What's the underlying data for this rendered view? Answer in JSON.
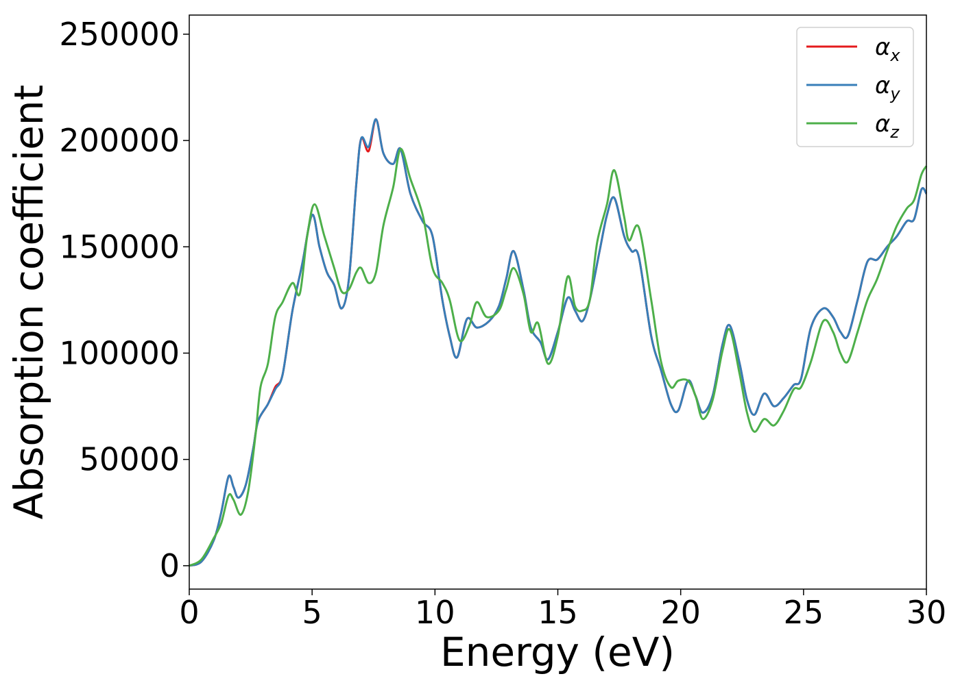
{
  "chart_data": {
    "type": "line",
    "xlabel": "Energy (eV)",
    "ylabel": "Absorption coefficient",
    "xlim": [
      0,
      30
    ],
    "ylim": [
      -11000,
      259000
    ],
    "xticks": [
      0,
      5,
      10,
      15,
      20,
      25,
      30
    ],
    "xtick_labels": [
      "0",
      "5",
      "10",
      "15",
      "20",
      "25",
      "30"
    ],
    "yticks": [
      0,
      50000,
      100000,
      150000,
      200000,
      250000
    ],
    "ytick_labels": [
      "0",
      "50000",
      "100000",
      "150000",
      "200000",
      "250000"
    ],
    "grid": false,
    "legend_position": "top-right",
    "series": [
      {
        "name": "α",
        "subscript": "x",
        "color": "#e41a1c",
        "points": [
          [
            0,
            0
          ],
          [
            0.5,
            2000
          ],
          [
            1.0,
            12000
          ],
          [
            1.3,
            25000
          ],
          [
            1.6,
            42000
          ],
          [
            1.8,
            37000
          ],
          [
            2.0,
            32000
          ],
          [
            2.3,
            38000
          ],
          [
            2.6,
            55000
          ],
          [
            2.8,
            68000
          ],
          [
            3.2,
            76000
          ],
          [
            3.5,
            84000
          ],
          [
            3.8,
            90000
          ],
          [
            4.2,
            120000
          ],
          [
            4.6,
            142000
          ],
          [
            5.0,
            165000
          ],
          [
            5.3,
            150000
          ],
          [
            5.6,
            138000
          ],
          [
            5.9,
            132000
          ],
          [
            6.2,
            121000
          ],
          [
            6.5,
            135000
          ],
          [
            6.8,
            180000
          ],
          [
            7.0,
            201000
          ],
          [
            7.3,
            195000
          ],
          [
            7.6,
            210000
          ],
          [
            7.9,
            194000
          ],
          [
            8.3,
            189000
          ],
          [
            8.6,
            196000
          ],
          [
            9.0,
            175000
          ],
          [
            9.5,
            162000
          ],
          [
            9.9,
            155000
          ],
          [
            10.3,
            125000
          ],
          [
            10.6,
            108000
          ],
          [
            10.9,
            98000
          ],
          [
            11.3,
            116000
          ],
          [
            11.7,
            112000
          ],
          [
            12.2,
            115000
          ],
          [
            12.6,
            122000
          ],
          [
            12.9,
            135000
          ],
          [
            13.2,
            148000
          ],
          [
            13.6,
            130000
          ],
          [
            13.9,
            112000
          ],
          [
            14.3,
            105000
          ],
          [
            14.6,
            97000
          ],
          [
            15.0,
            110000
          ],
          [
            15.4,
            126000
          ],
          [
            15.7,
            120000
          ],
          [
            16.0,
            115000
          ],
          [
            16.3,
            125000
          ],
          [
            16.7,
            148000
          ],
          [
            17.0,
            165000
          ],
          [
            17.3,
            173000
          ],
          [
            17.7,
            155000
          ],
          [
            18.0,
            148000
          ],
          [
            18.3,
            145000
          ],
          [
            18.8,
            108000
          ],
          [
            19.2,
            92000
          ],
          [
            19.6,
            76000
          ],
          [
            19.9,
            73000
          ],
          [
            20.3,
            87000
          ],
          [
            20.6,
            80000
          ],
          [
            20.9,
            72000
          ],
          [
            21.3,
            80000
          ],
          [
            21.7,
            104000
          ],
          [
            22.0,
            113000
          ],
          [
            22.4,
            95000
          ],
          [
            22.7,
            78000
          ],
          [
            23.0,
            71000
          ],
          [
            23.4,
            81000
          ],
          [
            23.8,
            75000
          ],
          [
            24.2,
            79000
          ],
          [
            24.6,
            85000
          ],
          [
            24.9,
            88000
          ],
          [
            25.3,
            112000
          ],
          [
            25.8,
            121000
          ],
          [
            26.2,
            117000
          ],
          [
            26.5,
            110000
          ],
          [
            26.8,
            108000
          ],
          [
            27.2,
            125000
          ],
          [
            27.6,
            143000
          ],
          [
            28.0,
            144000
          ],
          [
            28.4,
            150000
          ],
          [
            28.8,
            155000
          ],
          [
            29.2,
            162000
          ],
          [
            29.5,
            163000
          ],
          [
            29.8,
            177000
          ],
          [
            30.0,
            175000
          ]
        ]
      },
      {
        "name": "α",
        "subscript": "y",
        "color": "#377eb8",
        "points": [
          [
            0,
            0
          ],
          [
            0.5,
            2000
          ],
          [
            1.0,
            12000
          ],
          [
            1.3,
            25000
          ],
          [
            1.6,
            42000
          ],
          [
            1.8,
            37000
          ],
          [
            2.0,
            32000
          ],
          [
            2.3,
            38000
          ],
          [
            2.6,
            55000
          ],
          [
            2.8,
            68000
          ],
          [
            3.2,
            76000
          ],
          [
            3.5,
            83000
          ],
          [
            3.8,
            90000
          ],
          [
            4.2,
            120000
          ],
          [
            4.6,
            142000
          ],
          [
            5.0,
            165000
          ],
          [
            5.3,
            150000
          ],
          [
            5.6,
            138000
          ],
          [
            5.9,
            132000
          ],
          [
            6.2,
            121000
          ],
          [
            6.5,
            135000
          ],
          [
            6.8,
            180000
          ],
          [
            7.0,
            201000
          ],
          [
            7.3,
            197000
          ],
          [
            7.6,
            210000
          ],
          [
            7.9,
            194000
          ],
          [
            8.3,
            189000
          ],
          [
            8.6,
            196000
          ],
          [
            9.0,
            175000
          ],
          [
            9.5,
            162000
          ],
          [
            9.9,
            155000
          ],
          [
            10.3,
            125000
          ],
          [
            10.6,
            108000
          ],
          [
            10.9,
            98000
          ],
          [
            11.3,
            116000
          ],
          [
            11.7,
            112000
          ],
          [
            12.2,
            115000
          ],
          [
            12.6,
            122000
          ],
          [
            12.9,
            135000
          ],
          [
            13.2,
            148000
          ],
          [
            13.6,
            130000
          ],
          [
            13.9,
            112000
          ],
          [
            14.3,
            105000
          ],
          [
            14.6,
            97000
          ],
          [
            15.0,
            110000
          ],
          [
            15.4,
            126000
          ],
          [
            15.7,
            120000
          ],
          [
            16.0,
            115000
          ],
          [
            16.3,
            125000
          ],
          [
            16.7,
            148000
          ],
          [
            17.0,
            165000
          ],
          [
            17.3,
            173000
          ],
          [
            17.7,
            155000
          ],
          [
            18.0,
            148000
          ],
          [
            18.3,
            145000
          ],
          [
            18.8,
            108000
          ],
          [
            19.2,
            92000
          ],
          [
            19.6,
            76000
          ],
          [
            19.9,
            73000
          ],
          [
            20.3,
            87000
          ],
          [
            20.6,
            80000
          ],
          [
            20.9,
            72000
          ],
          [
            21.3,
            80000
          ],
          [
            21.7,
            104000
          ],
          [
            22.0,
            113000
          ],
          [
            22.4,
            95000
          ],
          [
            22.7,
            78000
          ],
          [
            23.0,
            71000
          ],
          [
            23.4,
            81000
          ],
          [
            23.8,
            75000
          ],
          [
            24.2,
            79000
          ],
          [
            24.6,
            85000
          ],
          [
            24.9,
            88000
          ],
          [
            25.3,
            112000
          ],
          [
            25.8,
            121000
          ],
          [
            26.2,
            117000
          ],
          [
            26.5,
            110000
          ],
          [
            26.8,
            108000
          ],
          [
            27.2,
            125000
          ],
          [
            27.6,
            143000
          ],
          [
            28.0,
            144000
          ],
          [
            28.4,
            150000
          ],
          [
            28.8,
            155000
          ],
          [
            29.2,
            162000
          ],
          [
            29.5,
            163000
          ],
          [
            29.8,
            177000
          ],
          [
            30.0,
            175000
          ]
        ]
      },
      {
        "name": "α",
        "subscript": "z",
        "color": "#4daf4a",
        "points": [
          [
            0,
            0
          ],
          [
            0.5,
            3000
          ],
          [
            1.0,
            13000
          ],
          [
            1.3,
            20000
          ],
          [
            1.6,
            33000
          ],
          [
            1.8,
            31000
          ],
          [
            2.1,
            24000
          ],
          [
            2.4,
            35000
          ],
          [
            2.7,
            62000
          ],
          [
            2.9,
            84000
          ],
          [
            3.2,
            95000
          ],
          [
            3.5,
            117000
          ],
          [
            3.8,
            124000
          ],
          [
            4.2,
            133000
          ],
          [
            4.5,
            128000
          ],
          [
            4.8,
            155000
          ],
          [
            5.1,
            170000
          ],
          [
            5.5,
            155000
          ],
          [
            5.9,
            140000
          ],
          [
            6.2,
            129000
          ],
          [
            6.5,
            130000
          ],
          [
            6.8,
            138000
          ],
          [
            7.0,
            140000
          ],
          [
            7.3,
            133000
          ],
          [
            7.6,
            138000
          ],
          [
            7.9,
            160000
          ],
          [
            8.3,
            178000
          ],
          [
            8.6,
            196000
          ],
          [
            9.0,
            182000
          ],
          [
            9.5,
            165000
          ],
          [
            9.9,
            140000
          ],
          [
            10.3,
            133000
          ],
          [
            10.6,
            125000
          ],
          [
            11.0,
            106000
          ],
          [
            11.4,
            113000
          ],
          [
            11.7,
            124000
          ],
          [
            12.1,
            117000
          ],
          [
            12.6,
            120000
          ],
          [
            12.9,
            130000
          ],
          [
            13.2,
            140000
          ],
          [
            13.6,
            128000
          ],
          [
            13.9,
            110000
          ],
          [
            14.2,
            114000
          ],
          [
            14.6,
            95000
          ],
          [
            15.0,
            108000
          ],
          [
            15.4,
            136000
          ],
          [
            15.7,
            122000
          ],
          [
            16.0,
            120000
          ],
          [
            16.3,
            125000
          ],
          [
            16.6,
            152000
          ],
          [
            17.0,
            170000
          ],
          [
            17.3,
            186000
          ],
          [
            17.7,
            164000
          ],
          [
            17.9,
            153000
          ],
          [
            18.3,
            159000
          ],
          [
            18.8,
            125000
          ],
          [
            19.2,
            96000
          ],
          [
            19.6,
            84000
          ],
          [
            19.9,
            87000
          ],
          [
            20.3,
            87000
          ],
          [
            20.6,
            80000
          ],
          [
            20.9,
            69000
          ],
          [
            21.3,
            78000
          ],
          [
            21.7,
            101000
          ],
          [
            22.0,
            111000
          ],
          [
            22.4,
            90000
          ],
          [
            22.7,
            72000
          ],
          [
            23.0,
            63000
          ],
          [
            23.4,
            69000
          ],
          [
            23.8,
            66000
          ],
          [
            24.2,
            73000
          ],
          [
            24.6,
            83000
          ],
          [
            24.9,
            84000
          ],
          [
            25.3,
            96000
          ],
          [
            25.8,
            115000
          ],
          [
            26.2,
            110000
          ],
          [
            26.5,
            100000
          ],
          [
            26.8,
            96000
          ],
          [
            27.2,
            110000
          ],
          [
            27.6,
            125000
          ],
          [
            28.0,
            135000
          ],
          [
            28.4,
            148000
          ],
          [
            28.8,
            160000
          ],
          [
            29.2,
            168000
          ],
          [
            29.5,
            172000
          ],
          [
            29.8,
            184000
          ],
          [
            30.0,
            188000
          ]
        ]
      }
    ]
  }
}
